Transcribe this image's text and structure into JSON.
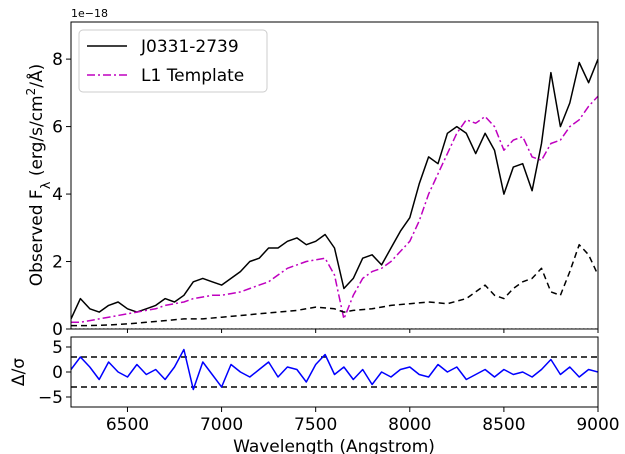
{
  "chart_data": [
    {
      "type": "line",
      "panel": "top",
      "offset_label": "1e−18",
      "ylabel_html": "Observed F<tspan baseline-shift=\"sub\" font-size=\"13\">λ</tspan> (erg/s/cm<tspan baseline-shift=\"super\" font-size=\"12\">2</tspan>/Å)",
      "xlim": [
        6200,
        9000
      ],
      "ylim": [
        0,
        9.1
      ],
      "yticks": [
        0,
        2,
        4,
        6,
        8
      ],
      "ytick_labels": [
        "0",
        "2",
        "4",
        "6",
        "8"
      ],
      "grid": false,
      "legend_position": "upper-left",
      "series": [
        {
          "name": "J0331-2739",
          "style": "solid",
          "color": "#000000",
          "x": [
            6200,
            6250,
            6300,
            6350,
            6400,
            6450,
            6500,
            6550,
            6600,
            6650,
            6700,
            6750,
            6800,
            6850,
            6900,
            6950,
            7000,
            7050,
            7100,
            7150,
            7200,
            7250,
            7300,
            7350,
            7400,
            7450,
            7500,
            7550,
            7600,
            7650,
            7700,
            7750,
            7800,
            7850,
            7900,
            7950,
            8000,
            8050,
            8100,
            8150,
            8200,
            8250,
            8300,
            8350,
            8400,
            8450,
            8500,
            8550,
            8600,
            8650,
            8700,
            8750,
            8800,
            8850,
            8900,
            8950,
            9000
          ],
          "y": [
            0.3,
            0.9,
            0.6,
            0.5,
            0.7,
            0.8,
            0.6,
            0.5,
            0.6,
            0.7,
            0.9,
            0.8,
            1.0,
            1.4,
            1.5,
            1.4,
            1.3,
            1.5,
            1.7,
            2.0,
            2.1,
            2.4,
            2.4,
            2.6,
            2.7,
            2.5,
            2.6,
            2.8,
            2.4,
            1.2,
            1.5,
            2.1,
            2.2,
            1.9,
            2.4,
            2.9,
            3.3,
            4.3,
            5.1,
            4.9,
            5.8,
            6.0,
            5.8,
            5.2,
            5.8,
            5.3,
            4.0,
            4.8,
            4.9,
            4.1,
            5.5,
            7.6,
            6.0,
            6.7,
            7.9,
            7.3,
            8.0
          ]
        },
        {
          "name": "L1 Template",
          "style": "dashdot",
          "color": "#bf00bf",
          "x": [
            6200,
            6250,
            6300,
            6350,
            6400,
            6450,
            6500,
            6550,
            6600,
            6650,
            6700,
            6750,
            6800,
            6850,
            6900,
            6950,
            7000,
            7050,
            7100,
            7150,
            7200,
            7250,
            7300,
            7350,
            7400,
            7450,
            7500,
            7550,
            7600,
            7650,
            7700,
            7750,
            7800,
            7850,
            7900,
            7950,
            8000,
            8050,
            8100,
            8150,
            8200,
            8250,
            8300,
            8350,
            8400,
            8450,
            8500,
            8550,
            8600,
            8650,
            8700,
            8750,
            8800,
            8850,
            8900,
            8950,
            9000
          ],
          "y": [
            0.2,
            0.2,
            0.25,
            0.3,
            0.35,
            0.4,
            0.45,
            0.5,
            0.55,
            0.6,
            0.7,
            0.75,
            0.8,
            0.9,
            0.95,
            1.0,
            1.0,
            1.05,
            1.1,
            1.2,
            1.3,
            1.4,
            1.6,
            1.8,
            1.9,
            2.0,
            2.05,
            2.1,
            1.6,
            0.3,
            1.0,
            1.5,
            1.7,
            1.8,
            2.0,
            2.3,
            2.6,
            3.2,
            4.0,
            4.6,
            5.2,
            5.8,
            6.2,
            6.1,
            6.3,
            6.0,
            5.3,
            5.6,
            5.7,
            5.1,
            5.0,
            5.5,
            5.6,
            6.0,
            6.2,
            6.6,
            6.9
          ]
        },
        {
          "name": "",
          "style": "dashed",
          "color": "#000000",
          "x": [
            6200,
            6300,
            6400,
            6500,
            6600,
            6700,
            6800,
            6900,
            7000,
            7100,
            7200,
            7300,
            7400,
            7500,
            7600,
            7650,
            7700,
            7800,
            7900,
            8000,
            8100,
            8200,
            8300,
            8400,
            8450,
            8500,
            8550,
            8600,
            8650,
            8700,
            8750,
            8800,
            8850,
            8900,
            8950,
            9000
          ],
          "y": [
            0.1,
            0.1,
            0.12,
            0.15,
            0.2,
            0.25,
            0.3,
            0.3,
            0.35,
            0.4,
            0.45,
            0.5,
            0.55,
            0.65,
            0.6,
            0.5,
            0.55,
            0.6,
            0.7,
            0.75,
            0.8,
            0.75,
            0.9,
            1.3,
            1.0,
            0.9,
            1.2,
            1.4,
            1.5,
            1.8,
            1.1,
            1.0,
            1.7,
            2.5,
            2.2,
            1.6
          ]
        },
        {
          "name": "",
          "style": "dotted",
          "color": "#000000",
          "x": [
            6200,
            9000
          ],
          "y": [
            0,
            0
          ]
        }
      ]
    },
    {
      "type": "line",
      "panel": "bottom",
      "xlabel": "Wavelength (Angstrom)",
      "ylabel": "Δ/σ",
      "xlim": [
        6200,
        9000
      ],
      "ylim": [
        -7,
        7
      ],
      "xticks": [
        6500,
        7000,
        7500,
        8000,
        8500,
        9000
      ],
      "xtick_labels": [
        "6500",
        "7000",
        "7500",
        "8000",
        "8500",
        "9000"
      ],
      "yticks": [
        -5,
        0,
        5
      ],
      "ytick_labels": [
        "−5",
        "0",
        "5"
      ],
      "hlines": [
        3,
        -3
      ],
      "series": [
        {
          "name": "",
          "style": "solid",
          "color": "#0000ff",
          "x": [
            6200,
            6250,
            6300,
            6350,
            6400,
            6450,
            6500,
            6550,
            6600,
            6650,
            6700,
            6750,
            6800,
            6850,
            6900,
            6950,
            7000,
            7050,
            7100,
            7150,
            7200,
            7250,
            7300,
            7350,
            7400,
            7450,
            7500,
            7550,
            7600,
            7650,
            7700,
            7750,
            7800,
            7850,
            7900,
            7950,
            8000,
            8050,
            8100,
            8150,
            8200,
            8250,
            8300,
            8350,
            8400,
            8450,
            8500,
            8550,
            8600,
            8650,
            8700,
            8750,
            8800,
            8850,
            8900,
            8950,
            9000
          ],
          "y": [
            0.5,
            3.0,
            1.0,
            -1.5,
            2.0,
            0.0,
            -1.0,
            1.5,
            -0.5,
            0.5,
            -1.5,
            1.0,
            4.5,
            -3.5,
            2.0,
            -0.5,
            -3.0,
            1.5,
            0.0,
            -1.0,
            0.5,
            2.0,
            -1.0,
            1.0,
            0.5,
            -2.0,
            1.5,
            3.5,
            -0.5,
            1.0,
            -1.5,
            0.5,
            -2.5,
            0.0,
            -1.0,
            0.5,
            1.0,
            -0.5,
            -1.0,
            1.5,
            0.0,
            1.0,
            -1.5,
            -0.5,
            0.5,
            -1.0,
            0.5,
            -0.5,
            0.0,
            -1.0,
            0.5,
            2.5,
            -0.5,
            1.0,
            -1.0,
            0.5,
            0.0
          ]
        }
      ]
    }
  ]
}
